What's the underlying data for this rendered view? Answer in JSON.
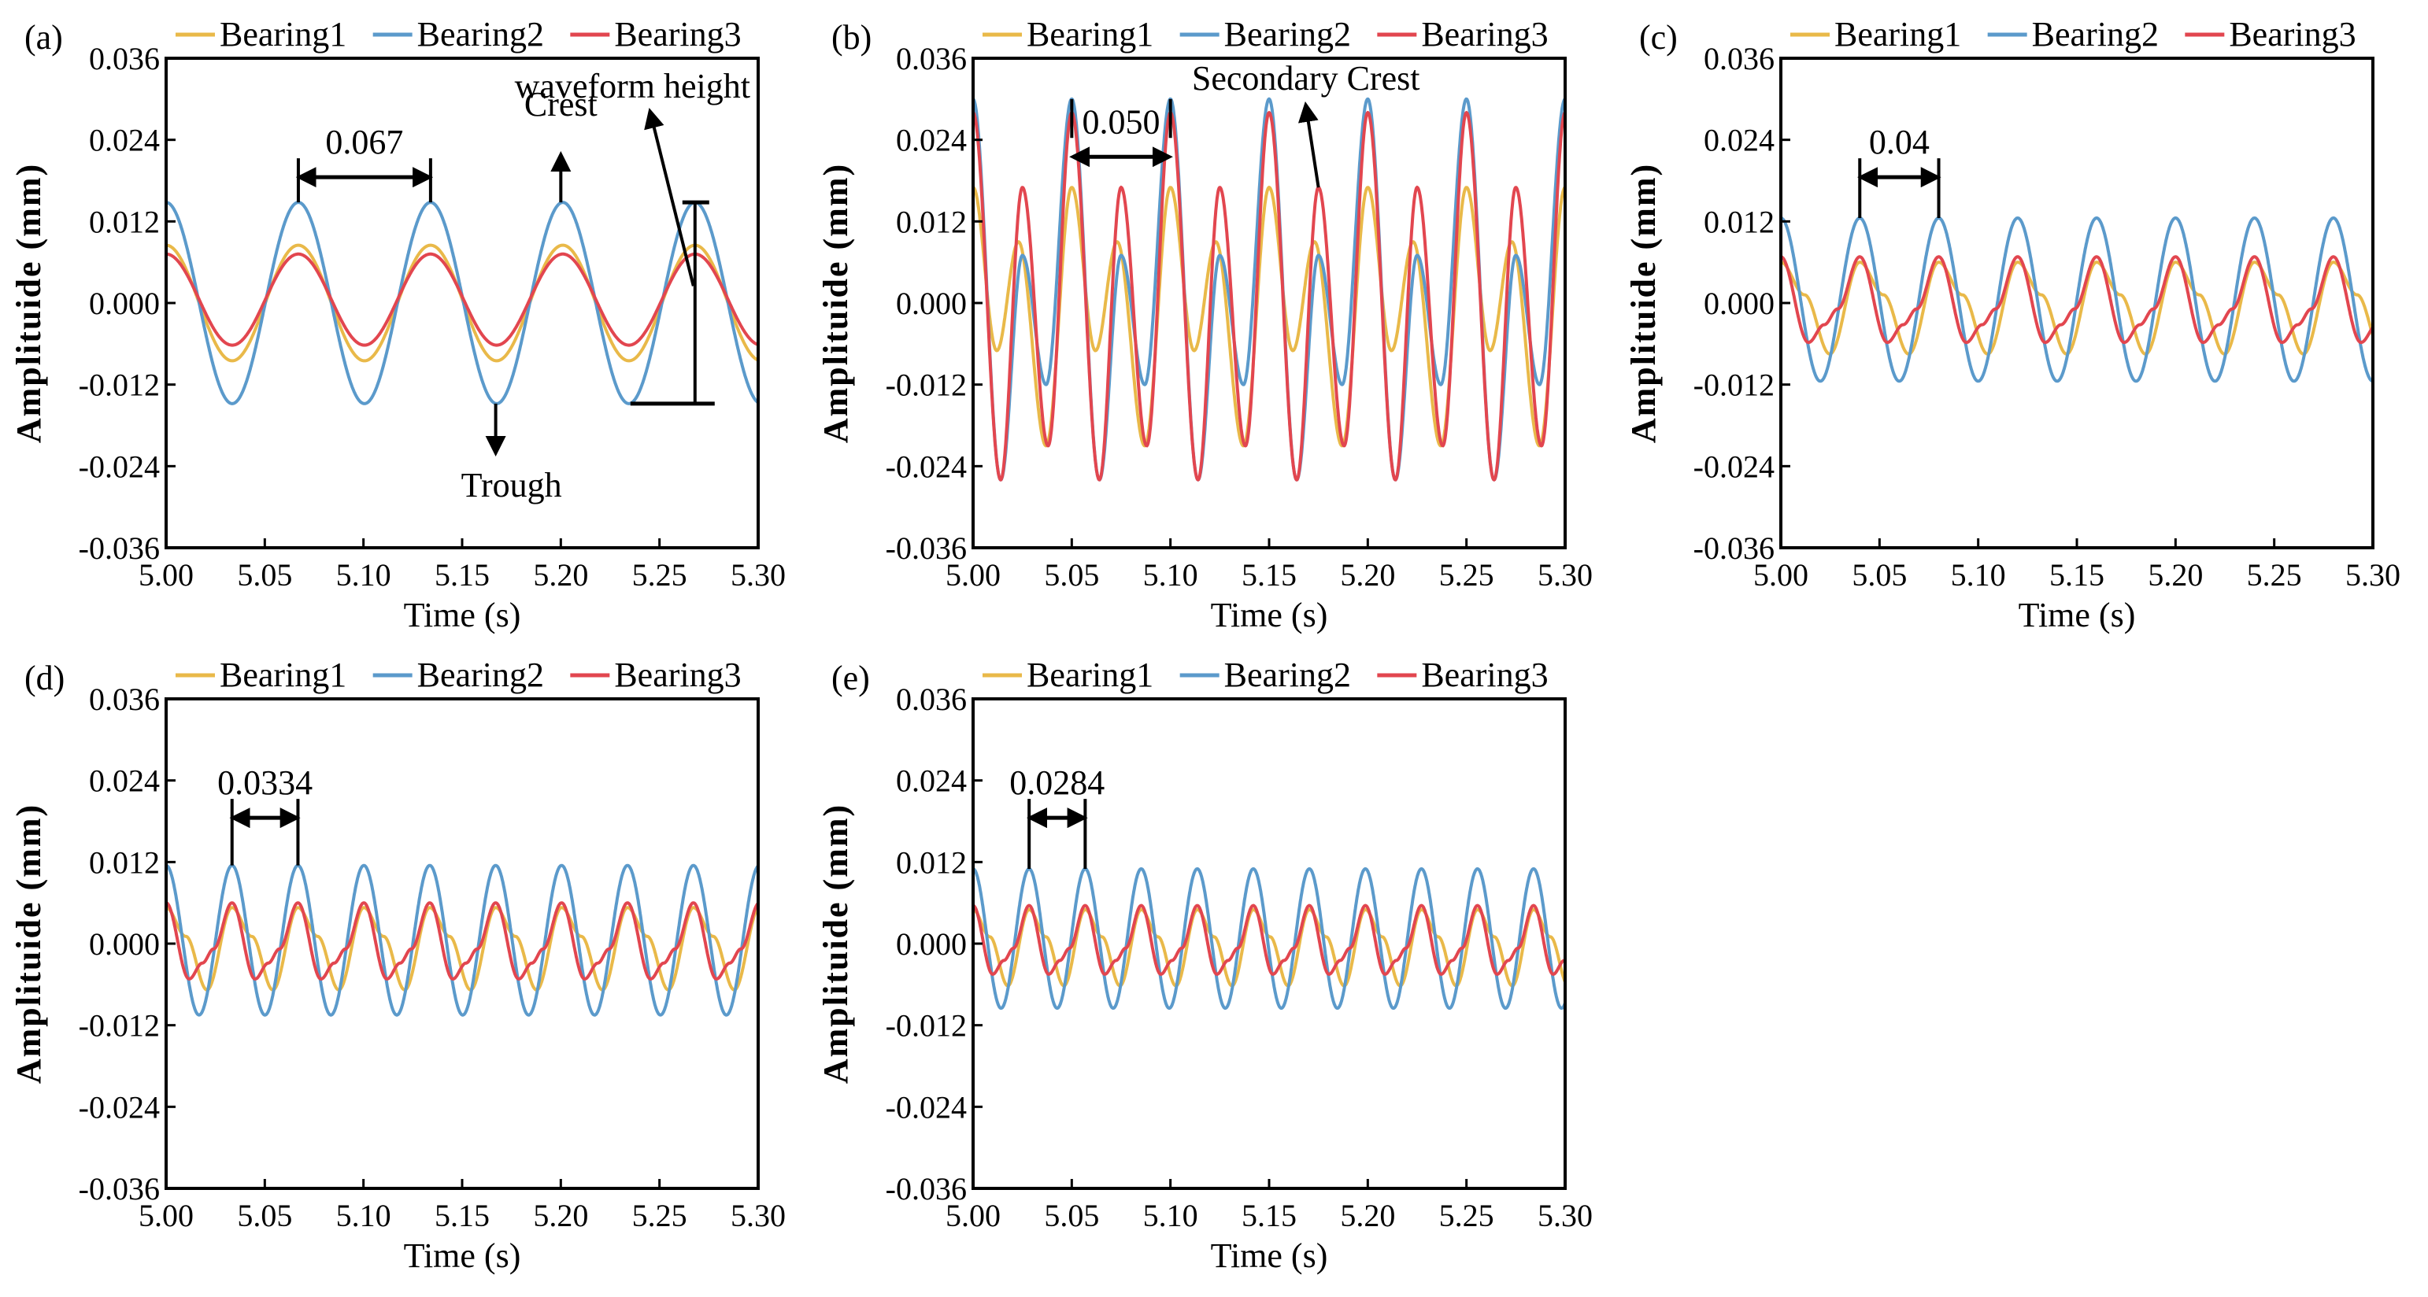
{
  "figure": {
    "colors": {
      "Bearing1": "#E9B949",
      "Bearing2": "#5B9ACB",
      "Bearing3": "#E2464F",
      "axis": "#000000",
      "annotation": "#000000"
    }
  },
  "chart_data": [
    {
      "panel": "(a)",
      "type": "line",
      "title": "",
      "xlabel": "Time (s)",
      "ylabel": "Amplituide (mm)",
      "xlim": [
        5.0,
        5.3
      ],
      "ylim": [
        -0.036,
        0.036
      ],
      "xticks": [
        "5.00",
        "5.05",
        "5.10",
        "5.15",
        "5.20",
        "5.25",
        "5.30"
      ],
      "yticks": [
        "0.036",
        "0.024",
        "0.012",
        "0.000",
        "-0.012",
        "-0.024",
        "-0.036"
      ],
      "grid": false,
      "legend": [
        "Bearing1",
        "Bearing2",
        "Bearing3"
      ],
      "legend_position": "top",
      "series": [
        {
          "name": "Bearing1",
          "period": 0.067,
          "phase_peak": 5.067,
          "peak": 0.0085,
          "trough": -0.0085,
          "harmonic2": 0.0
        },
        {
          "name": "Bearing2",
          "period": 0.067,
          "phase_peak": 5.067,
          "peak": 0.0148,
          "trough": -0.0148,
          "harmonic2": 0.0
        },
        {
          "name": "Bearing3",
          "period": 0.067,
          "phase_peak": 5.067,
          "peak": 0.0072,
          "trough": -0.0062,
          "harmonic2": 0.0
        }
      ],
      "annotations": [
        {
          "type": "period",
          "label": "0.067",
          "x0": 5.067,
          "x1": 5.134,
          "y": 0.0185
        },
        {
          "type": "arrow-label",
          "label": "Crest",
          "x": 5.2,
          "y": 0.0148
        },
        {
          "type": "arrow-label",
          "label": "Trough",
          "x": 5.167,
          "y": -0.0148
        },
        {
          "type": "height-bar",
          "label": "waveform height",
          "x": 5.268,
          "ytop": 0.0148,
          "ybot": -0.0148
        }
      ]
    },
    {
      "panel": "(b)",
      "type": "line",
      "title": "",
      "xlabel": "Time (s)",
      "ylabel": "Amplituide (mm)",
      "xlim": [
        5.0,
        5.3
      ],
      "ylim": [
        -0.036,
        0.036
      ],
      "xticks": [
        "5.00",
        "5.05",
        "5.10",
        "5.15",
        "5.20",
        "5.25",
        "5.30"
      ],
      "yticks": [
        "0.036",
        "0.024",
        "0.012",
        "0.000",
        "-0.012",
        "-0.024",
        "-0.036"
      ],
      "grid": false,
      "legend": [
        "Bearing1",
        "Bearing2",
        "Bearing3"
      ],
      "legend_position": "top",
      "series": [
        {
          "name": "Bearing1",
          "period": 0.05,
          "main_peak": 0.017,
          "secondary_peak": 0.009,
          "main_trough": -0.021,
          "secondary_trough": -0.007
        },
        {
          "name": "Bearing2",
          "period": 0.05,
          "main_peak": 0.03,
          "secondary_peak": 0.007,
          "main_trough": -0.026,
          "secondary_trough": -0.012
        },
        {
          "name": "Bearing3",
          "period": 0.05,
          "main_peak": 0.028,
          "secondary_peak": 0.017,
          "main_trough": -0.026,
          "secondary_trough": -0.021
        }
      ],
      "annotations": [
        {
          "type": "period",
          "label": "0.050",
          "x0": 5.05,
          "x1": 5.1,
          "y": 0.0215
        },
        {
          "type": "arrow-label",
          "label": "Secondary Crest",
          "x": 5.175,
          "y": 0.017
        }
      ]
    },
    {
      "panel": "(c)",
      "type": "line",
      "title": "",
      "xlabel": "Time (s)",
      "ylabel": "Amplituide (mm)",
      "xlim": [
        5.0,
        5.3
      ],
      "ylim": [
        -0.036,
        0.036
      ],
      "xticks": [
        "5.00",
        "5.05",
        "5.10",
        "5.15",
        "5.20",
        "5.25",
        "5.30"
      ],
      "yticks": [
        "0.036",
        "0.024",
        "0.012",
        "0.000",
        "-0.012",
        "-0.024",
        "-0.036"
      ],
      "grid": false,
      "legend": [
        "Bearing1",
        "Bearing2",
        "Bearing3"
      ],
      "legend_position": "top",
      "series": [
        {
          "name": "Bearing1",
          "period": 0.04,
          "peak": 0.006,
          "trough": -0.0075
        },
        {
          "name": "Bearing2",
          "period": 0.04,
          "peak": 0.0125,
          "trough": -0.0115
        },
        {
          "name": "Bearing3",
          "period": 0.04,
          "peak": 0.0068,
          "trough": -0.0058
        }
      ],
      "annotations": [
        {
          "type": "period",
          "label": "0.04",
          "x0": 5.04,
          "x1": 5.08,
          "y": 0.0185
        }
      ]
    },
    {
      "panel": "(d)",
      "type": "line",
      "title": "",
      "xlabel": "Time (s)",
      "ylabel": "Amplituide (mm)",
      "xlim": [
        5.0,
        5.3
      ],
      "ylim": [
        -0.036,
        0.036
      ],
      "xticks": [
        "5.00",
        "5.05",
        "5.10",
        "5.15",
        "5.20",
        "5.25",
        "5.30"
      ],
      "yticks": [
        "0.036",
        "0.024",
        "0.012",
        "0.000",
        "-0.012",
        "-0.024",
        "-0.036"
      ],
      "grid": false,
      "legend": [
        "Bearing1",
        "Bearing2",
        "Bearing3"
      ],
      "legend_position": "top",
      "series": [
        {
          "name": "Bearing1",
          "period": 0.0334,
          "peak": 0.0053,
          "trough": -0.0068
        },
        {
          "name": "Bearing2",
          "period": 0.0334,
          "peak": 0.0115,
          "trough": -0.0105
        },
        {
          "name": "Bearing3",
          "period": 0.0334,
          "peak": 0.006,
          "trough": -0.0052
        }
      ],
      "annotations": [
        {
          "type": "period",
          "label": "0.0334",
          "x0": 5.0334,
          "x1": 5.0668,
          "y": 0.0185
        }
      ]
    },
    {
      "panel": "(e)",
      "type": "line",
      "title": "",
      "xlabel": "Time (s)",
      "ylabel": "Amplituide (mm)",
      "xlim": [
        5.0,
        5.3
      ],
      "ylim": [
        -0.036,
        0.036
      ],
      "xticks": [
        "5.00",
        "5.05",
        "5.10",
        "5.15",
        "5.20",
        "5.25",
        "5.30"
      ],
      "yticks": [
        "0.036",
        "0.024",
        "0.012",
        "0.000",
        "-0.012",
        "-0.024",
        "-0.036"
      ],
      "grid": false,
      "legend": [
        "Bearing1",
        "Bearing2",
        "Bearing3"
      ],
      "legend_position": "top",
      "series": [
        {
          "name": "Bearing1",
          "period": 0.0284,
          "peak": 0.005,
          "trough": -0.0062
        },
        {
          "name": "Bearing2",
          "period": 0.0284,
          "peak": 0.011,
          "trough": -0.0095
        },
        {
          "name": "Bearing3",
          "period": 0.0284,
          "peak": 0.0056,
          "trough": -0.0045
        }
      ],
      "annotations": [
        {
          "type": "period",
          "label": "0.0284",
          "x0": 5.0284,
          "x1": 5.0568,
          "y": 0.0185
        }
      ]
    }
  ]
}
